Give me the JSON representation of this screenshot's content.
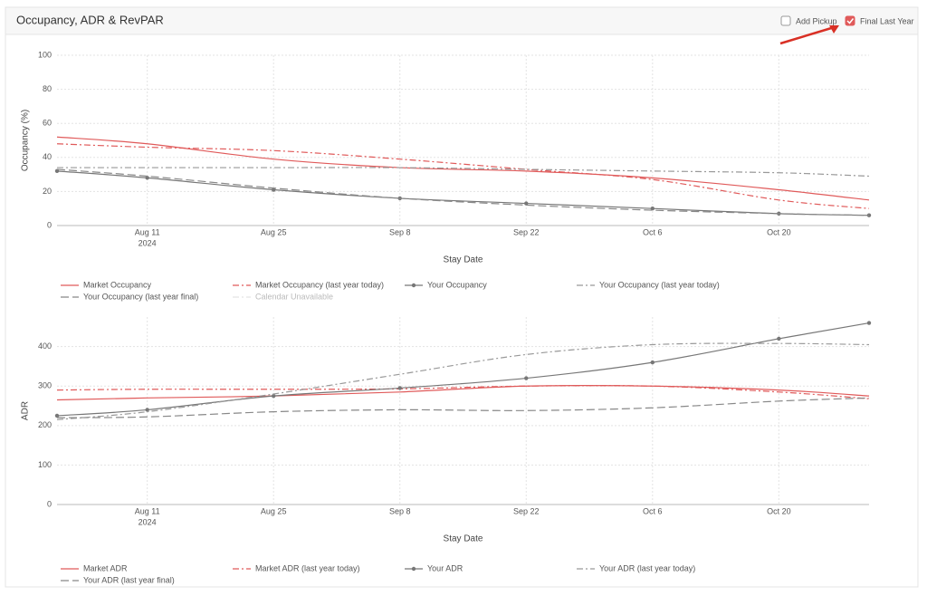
{
  "header": {
    "title": "Occupancy, ADR & RevPAR",
    "controls": [
      {
        "label": "Add Pickup",
        "checked": false
      },
      {
        "label": "Final Last Year",
        "checked": true
      }
    ]
  },
  "chart_data": [
    {
      "type": "line",
      "y_label": "Occupancy (%)",
      "x_label": "Stay Date",
      "x": [
        "2024-08-01",
        "2024-08-11",
        "2024-08-25",
        "2024-09-08",
        "2024-09-22",
        "2024-10-06",
        "2024-10-20",
        "2024-10-30"
      ],
      "xlim": [
        "2024-08-01",
        "2024-10-30"
      ],
      "xticks": [
        {
          "value": "2024-08-11",
          "label": "Aug 11"
        },
        {
          "value": "2024-08-25",
          "label": "Aug 25"
        },
        {
          "value": "2024-09-08",
          "label": "Sep 8"
        },
        {
          "value": "2024-09-22",
          "label": "Sep 22"
        },
        {
          "value": "2024-10-06",
          "label": "Oct 6"
        },
        {
          "value": "2024-10-20",
          "label": "Oct 20"
        }
      ],
      "year_label": "2024",
      "ylim": [
        0,
        100
      ],
      "yticks": [
        0,
        20,
        40,
        60,
        80,
        100
      ],
      "grid": true,
      "series": [
        {
          "name": "Market Occupancy",
          "color": "#e05a5a",
          "dash": "solid",
          "values": [
            52,
            48,
            39,
            34,
            32,
            28,
            21,
            15
          ]
        },
        {
          "name": "Market Occupancy (last year today)",
          "color": "#e05a5a",
          "dash": "dashdot",
          "values": [
            48,
            46,
            44,
            39,
            33,
            27,
            15,
            10
          ]
        },
        {
          "name": "Your Occupancy",
          "color": "#777777",
          "dash": "solid",
          "markers": true,
          "values": [
            32,
            28,
            21,
            16,
            13,
            10,
            7,
            6
          ]
        },
        {
          "name": "Your Occupancy (last year today)",
          "color": "#999999",
          "dash": "dashdot",
          "values": [
            34,
            34,
            34,
            34,
            33,
            32,
            31,
            29
          ]
        },
        {
          "name": "Your Occupancy (last year final)",
          "color": "#888888",
          "dash": "longdash",
          "values": [
            33,
            29,
            22,
            16,
            12,
            9,
            7,
            6
          ]
        }
      ],
      "inactive_legend": [
        "Calendar Unavailable"
      ]
    },
    {
      "type": "line",
      "y_label": "ADR",
      "x_label": "Stay Date",
      "x": [
        "2024-08-01",
        "2024-08-11",
        "2024-08-25",
        "2024-09-08",
        "2024-09-22",
        "2024-10-06",
        "2024-10-20",
        "2024-10-30"
      ],
      "xlim": [
        "2024-08-01",
        "2024-10-30"
      ],
      "xticks": [
        {
          "value": "2024-08-11",
          "label": "Aug 11"
        },
        {
          "value": "2024-08-25",
          "label": "Aug 25"
        },
        {
          "value": "2024-09-08",
          "label": "Sep 8"
        },
        {
          "value": "2024-09-22",
          "label": "Sep 22"
        },
        {
          "value": "2024-10-06",
          "label": "Oct 6"
        },
        {
          "value": "2024-10-20",
          "label": "Oct 20"
        }
      ],
      "year_label": "2024",
      "ylim": [
        0,
        475
      ],
      "yticks": [
        0,
        100,
        200,
        300,
        400
      ],
      "grid": true,
      "series": [
        {
          "name": "Market ADR",
          "color": "#e05a5a",
          "dash": "solid",
          "values": [
            265,
            270,
            275,
            285,
            300,
            300,
            290,
            275
          ]
        },
        {
          "name": "Market ADR (last year today)",
          "color": "#e05a5a",
          "dash": "dashdot",
          "values": [
            290,
            292,
            292,
            293,
            300,
            300,
            285,
            268
          ]
        },
        {
          "name": "Your ADR",
          "color": "#777777",
          "dash": "solid",
          "markers": true,
          "values": [
            225,
            240,
            275,
            295,
            320,
            360,
            420,
            460
          ]
        },
        {
          "name": "Your ADR (last year today)",
          "color": "#999999",
          "dash": "dashdot",
          "values": [
            215,
            235,
            280,
            330,
            380,
            405,
            408,
            405
          ]
        },
        {
          "name": "Your ADR (last year final)",
          "color": "#888888",
          "dash": "longdash",
          "values": [
            220,
            222,
            235,
            240,
            238,
            245,
            262,
            270
          ]
        }
      ]
    }
  ]
}
